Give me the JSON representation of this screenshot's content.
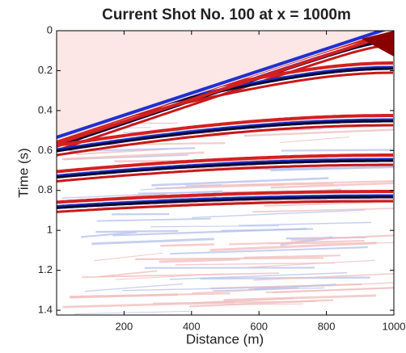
{
  "chart_data": {
    "type": "image",
    "title": "Current Shot No. 100 at x = 1000m",
    "x_label": "Distance (m)",
    "y_label": "Time (s)",
    "xlim": [
      0,
      1000
    ],
    "xticks": [
      200,
      400,
      600,
      800,
      1000
    ],
    "ylim": [
      0,
      1.424
    ],
    "yticks": [
      0,
      0.2,
      0.4,
      0.6,
      0.8,
      1,
      1.2,
      1.4
    ],
    "y_reversed": true
  }
}
